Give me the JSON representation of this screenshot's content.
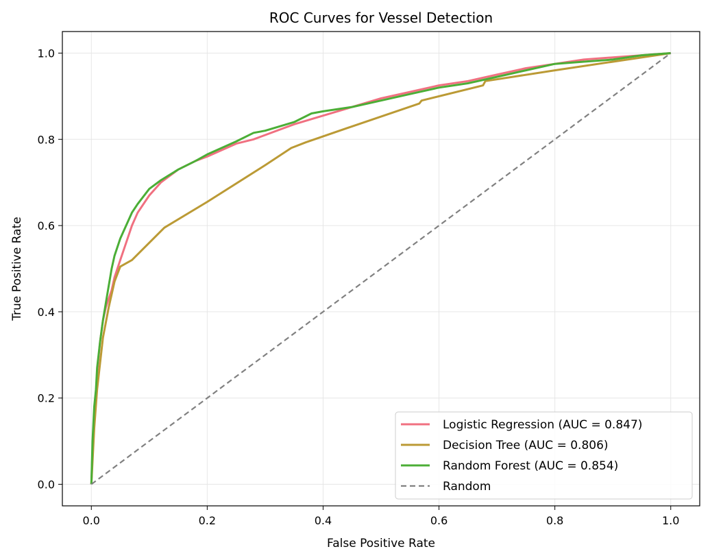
{
  "chart_data": {
    "type": "line",
    "title": "ROC Curves for Vessel Detection",
    "xlabel": "False Positive Rate",
    "ylabel": "True Positive Rate",
    "xlim": [
      -0.05,
      1.05
    ],
    "ylim": [
      -0.05,
      1.05
    ],
    "xticks": [
      0.0,
      0.2,
      0.4,
      0.6,
      0.8,
      1.0
    ],
    "yticks": [
      0.0,
      0.2,
      0.4,
      0.6,
      0.8,
      1.0
    ],
    "xtick_labels": [
      "0.0",
      "0.2",
      "0.4",
      "0.6",
      "0.8",
      "1.0"
    ],
    "ytick_labels": [
      "0.0",
      "0.2",
      "0.4",
      "0.6",
      "0.8",
      "1.0"
    ],
    "grid": true,
    "legend_position": "lower-right",
    "series": [
      {
        "name": "Logistic Regression (AUC = 0.847)",
        "color": "#f07080",
        "style": "solid",
        "x": [
          0.0,
          0.002,
          0.005,
          0.008,
          0.01,
          0.015,
          0.02,
          0.025,
          0.03,
          0.035,
          0.04,
          0.05,
          0.06,
          0.07,
          0.08,
          0.1,
          0.12,
          0.15,
          0.18,
          0.2,
          0.25,
          0.28,
          0.3,
          0.35,
          0.4,
          0.45,
          0.5,
          0.55,
          0.6,
          0.65,
          0.7,
          0.75,
          0.8,
          0.85,
          0.9,
          0.95,
          1.0
        ],
        "y": [
          0.0,
          0.08,
          0.15,
          0.2,
          0.26,
          0.33,
          0.38,
          0.41,
          0.43,
          0.45,
          0.48,
          0.52,
          0.56,
          0.6,
          0.63,
          0.67,
          0.7,
          0.73,
          0.75,
          0.76,
          0.79,
          0.8,
          0.81,
          0.835,
          0.855,
          0.875,
          0.895,
          0.91,
          0.925,
          0.935,
          0.95,
          0.965,
          0.975,
          0.985,
          0.99,
          0.995,
          1.0
        ]
      },
      {
        "name": "Decision Tree (AUC = 0.806)",
        "color": "#bb9a35",
        "style": "solid",
        "x": [
          0.0,
          0.005,
          0.01,
          0.02,
          0.03,
          0.04,
          0.05,
          0.07,
          0.126,
          0.2,
          0.3,
          0.345,
          0.37,
          0.45,
          0.566,
          0.57,
          0.676,
          0.68,
          0.8,
          1.0
        ],
        "y": [
          0.0,
          0.13,
          0.22,
          0.34,
          0.41,
          0.47,
          0.505,
          0.52,
          0.595,
          0.655,
          0.74,
          0.78,
          0.793,
          0.83,
          0.883,
          0.89,
          0.925,
          0.935,
          0.96,
          1.0
        ]
      },
      {
        "name": "Random Forest (AUC = 0.854)",
        "color": "#4bae36",
        "style": "solid",
        "x": [
          0.0,
          0.002,
          0.005,
          0.008,
          0.01,
          0.015,
          0.02,
          0.025,
          0.03,
          0.035,
          0.04,
          0.05,
          0.06,
          0.07,
          0.08,
          0.1,
          0.12,
          0.15,
          0.18,
          0.2,
          0.25,
          0.28,
          0.3,
          0.35,
          0.38,
          0.4,
          0.45,
          0.5,
          0.55,
          0.6,
          0.65,
          0.7,
          0.75,
          0.8,
          0.85,
          0.9,
          0.95,
          1.0
        ],
        "y": [
          0.0,
          0.1,
          0.18,
          0.22,
          0.27,
          0.33,
          0.38,
          0.42,
          0.46,
          0.5,
          0.53,
          0.57,
          0.6,
          0.63,
          0.65,
          0.685,
          0.705,
          0.73,
          0.75,
          0.765,
          0.795,
          0.815,
          0.82,
          0.84,
          0.86,
          0.865,
          0.875,
          0.89,
          0.905,
          0.92,
          0.93,
          0.945,
          0.96,
          0.975,
          0.98,
          0.985,
          0.995,
          1.0
        ]
      },
      {
        "name": "Random",
        "color": "#808080",
        "style": "dashed",
        "x": [
          0.0,
          1.0
        ],
        "y": [
          0.0,
          1.0
        ]
      }
    ]
  }
}
